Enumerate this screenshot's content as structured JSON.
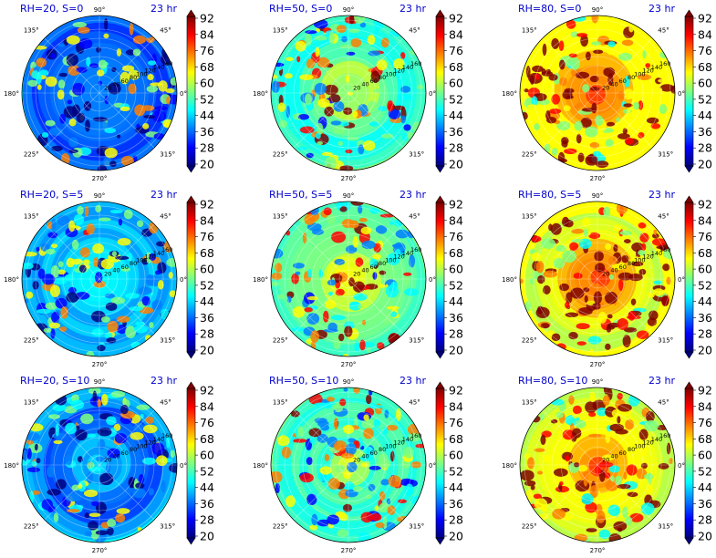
{
  "chart_data": [
    {
      "type": "polar-heatmap",
      "title_left": "RH=20, S=0",
      "title_right": "23 hr",
      "intensity": 0.28,
      "vmin": 20,
      "vmax": 92
    },
    {
      "type": "polar-heatmap",
      "title_left": "RH=50, S=0",
      "title_right": "23 hr",
      "intensity": 0.55,
      "vmin": 20,
      "vmax": 92
    },
    {
      "type": "polar-heatmap",
      "title_left": "RH=80, S=0",
      "title_right": "23 hr",
      "intensity": 0.78,
      "vmin": 20,
      "vmax": 92
    },
    {
      "type": "polar-heatmap",
      "title_left": "RH=20, S=5",
      "title_right": "23 hr",
      "intensity": 0.32,
      "vmin": 20,
      "vmax": 92
    },
    {
      "type": "polar-heatmap",
      "title_left": "RH=50, S=5",
      "title_right": "23 hr",
      "intensity": 0.58,
      "vmin": 20,
      "vmax": 92
    },
    {
      "type": "polar-heatmap",
      "title_left": "RH=80, S=5",
      "title_right": "23 hr",
      "intensity": 0.8,
      "vmin": 20,
      "vmax": 92
    },
    {
      "type": "polar-heatmap",
      "title_left": "RH=20, S=10",
      "title_right": "23 hr",
      "intensity": 0.3,
      "vmin": 20,
      "vmax": 92
    },
    {
      "type": "polar-heatmap",
      "title_left": "RH=50, S=10",
      "title_right": "23 hr",
      "intensity": 0.52,
      "vmin": 20,
      "vmax": 92
    },
    {
      "type": "polar-heatmap",
      "title_left": "RH=80, S=10",
      "title_right": "23 hr",
      "intensity": 0.75,
      "vmin": 20,
      "vmax": 92
    }
  ],
  "angle_labels": [
    "0°",
    "45°",
    "90°",
    "135°",
    "180°",
    "225°",
    "270°",
    "315°"
  ],
  "radial_labels": [
    "20",
    "40",
    "60",
    "80",
    "100",
    "120",
    "140",
    "160"
  ],
  "colorbar_ticks": [
    "20",
    "28",
    "36",
    "44",
    "52",
    "60",
    "68",
    "76",
    "84",
    "92"
  ],
  "colormap": [
    "#00007f",
    "#0000ff",
    "#007fff",
    "#00ffff",
    "#7fff7f",
    "#ffff00",
    "#ff7f00",
    "#ff0000",
    "#7f0000"
  ]
}
